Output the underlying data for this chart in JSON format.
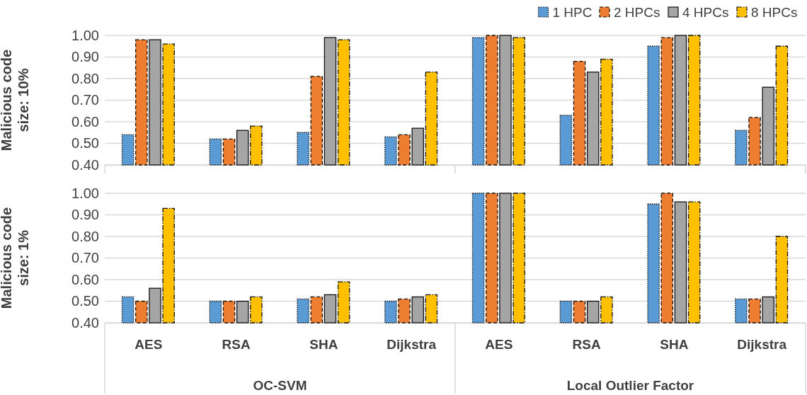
{
  "chart_data": [
    {
      "type": "bar",
      "ylabel": "Malicious code size: 10%",
      "categories": [
        null,
        null,
        null,
        null,
        null,
        null,
        null,
        null
      ],
      "series": [
        {
          "name": "1 HPC",
          "color": "#5b9bd5",
          "values": [
            0.54,
            0.52,
            0.55,
            0.53,
            0.99,
            0.63,
            0.95,
            0.56
          ]
        },
        {
          "name": "2 HPCs",
          "color": "#ed7d31",
          "values": [
            0.98,
            0.52,
            0.81,
            0.54,
            1.0,
            0.88,
            0.99,
            0.62
          ]
        },
        {
          "name": "4 HPCs",
          "color": "#a5a5a5",
          "values": [
            0.98,
            0.56,
            0.99,
            0.57,
            1.0,
            0.83,
            1.0,
            0.76
          ]
        },
        {
          "name": "8 HPCs",
          "color": "#ffc000",
          "values": [
            0.96,
            0.58,
            0.98,
            0.83,
            0.99,
            0.89,
            1.0,
            0.95
          ]
        }
      ],
      "ylim": [
        0.4,
        1.0
      ],
      "yticks": [
        {
          "value": 0.4,
          "label": "0.40"
        },
        {
          "value": 0.5,
          "label": "0.50"
        },
        {
          "value": 0.6,
          "label": "0.60"
        },
        {
          "value": 0.7,
          "label": "0.70"
        },
        {
          "value": 0.8,
          "label": "0.80"
        },
        {
          "value": 0.9,
          "label": "0.90"
        },
        {
          "value": 1.0,
          "label": "1.00"
        }
      ],
      "grid": "y",
      "legend": "top right",
      "tick_labels": "y"
    },
    {
      "type": "bar",
      "ylabel": "Malicious code size: 1%",
      "categories": [
        "AES",
        "RSA",
        "SHA",
        "Dijkstra",
        "AES",
        "RSA",
        "SHA",
        "Dijkstra"
      ],
      "series": [
        {
          "color": "#5b9bd5",
          "values": [
            0.52,
            0.5,
            0.51,
            0.5,
            1.0,
            0.5,
            0.95,
            0.51
          ]
        },
        {
          "color": "#ed7d31",
          "values": [
            0.5,
            0.5,
            0.52,
            0.51,
            1.0,
            0.5,
            1.0,
            0.51
          ]
        },
        {
          "color": "#a5a5a5",
          "values": [
            0.56,
            0.5,
            0.53,
            0.52,
            1.0,
            0.5,
            0.96,
            0.52
          ]
        },
        {
          "color": "#ffc000",
          "values": [
            0.93,
            0.52,
            0.59,
            0.53,
            1.0,
            0.52,
            0.96,
            0.8
          ]
        }
      ],
      "ylim": [
        0.4,
        1.0
      ],
      "yticks": [
        {
          "value": 0.4,
          "label": "0.40"
        },
        {
          "value": 0.5,
          "label": "0.50"
        },
        {
          "value": 0.6,
          "label": "0.60"
        },
        {
          "value": 0.7,
          "label": "0.70"
        },
        {
          "value": 0.8,
          "label": "0.80"
        },
        {
          "value": 0.9,
          "label": "0.90"
        },
        {
          "value": 1.0,
          "label": "1.00"
        }
      ],
      "grid": "y",
      "annotations": [
        "OC-SVM",
        "Local Outlier Factor"
      ]
    }
  ]
}
